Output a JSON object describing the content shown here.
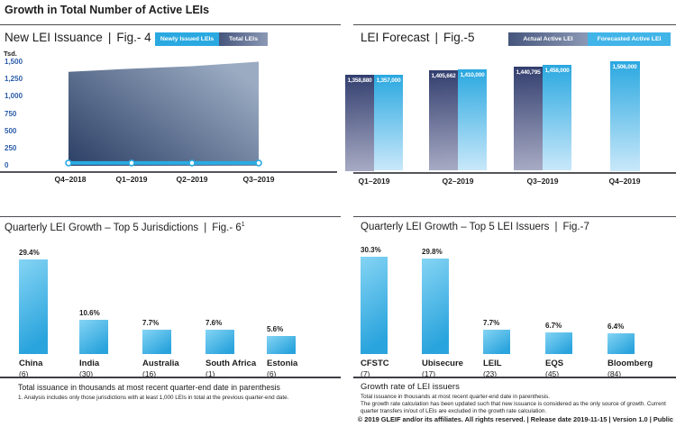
{
  "page_title": "Growth in Total Number of Active LEIs",
  "footer_line": "© 2019 GLEIF and/or its affiliates. All rights reserved. | Release date 2019-11-15 | Version 1.0 | Public",
  "colors": {
    "light_blue": "#29a9e1",
    "pale_blue": "#c9e8fa",
    "navy": "#323e6e",
    "steel": "#a8abc4",
    "tick_blue": "#2b5ca9"
  },
  "chart_data": [
    {
      "id": "fig4",
      "type": "area",
      "title": "New LEI Issuance",
      "fig_label": "Fig.- 4",
      "unit_label": "Tsd.",
      "legend": [
        "Newly Issued LEIs",
        "Total LEIs"
      ],
      "legend_position": "top-right",
      "x": [
        "Q4–2018",
        "Q1–2019",
        "Q2–2019",
        "Q3–2019"
      ],
      "series": [
        {
          "name": "Total LEIs",
          "type": "area",
          "values": [
            1359,
            1406,
            1441,
            1506
          ]
        },
        {
          "name": "Newly Issued LEIs",
          "type": "line",
          "values": [
            40,
            40,
            40,
            40
          ]
        }
      ],
      "ylabel": "Tsd.",
      "ylim": [
        0,
        1500
      ],
      "grid": false,
      "yticks": [
        1500,
        1250,
        1000,
        750,
        500,
        250,
        0
      ],
      "ytick_labels": [
        "1,500",
        "1,250",
        "1,000",
        "750",
        "500",
        "250",
        "0"
      ]
    },
    {
      "id": "fig5",
      "type": "bar",
      "title": "LEI Forecast",
      "fig_label": "Fig.-5",
      "legend": [
        "Actual Active LEI",
        "Forecasted Active LEI"
      ],
      "legend_position": "top-right",
      "x": [
        "Q1–2019",
        "Q2–2019",
        "Q3–2019",
        "Q4–2019"
      ],
      "series": [
        {
          "name": "Actual Active LEI",
          "values": [
            1358880,
            1405662,
            1440795,
            null
          ],
          "labels": [
            "1,358,880",
            "1,405,662",
            "1,440,795",
            null
          ]
        },
        {
          "name": "Forecasted Active LEI",
          "values": [
            1357000,
            1410000,
            1458000,
            1506000
          ],
          "labels": [
            "1,357,000",
            "1,410,000",
            "1,458,000",
            "1,506,000"
          ]
        }
      ]
    },
    {
      "id": "fig6",
      "type": "bar",
      "title": "Quarterly LEI Growth – Top 5 Jurisdictions",
      "fig_label": "Fig.- 6",
      "fig_superscript": "1",
      "categories": [
        "China",
        "India",
        "Australia",
        "South Africa",
        "Estonia"
      ],
      "category_sublabels": [
        "(6)",
        "(30)",
        "(16)",
        "(1)",
        "(6)"
      ],
      "values": [
        29.4,
        10.6,
        7.7,
        7.6,
        5.6
      ],
      "value_labels": [
        "29.4%",
        "10.6%",
        "7.7%",
        "7.6%",
        "5.6%"
      ],
      "note": "Total issuance in thousands at most recent quarter-end date in parenthesis",
      "footnote": "1. Analysis includes only those jurisdictions with at least 1,000 LEIs in total at the previous quarter-end date."
    },
    {
      "id": "fig7",
      "type": "bar",
      "title": "Quarterly LEI Growth – Top 5 LEI Issuers",
      "fig_label": "Fig.-7",
      "categories": [
        "CFSTC",
        "Ubisecure",
        "LEIL",
        "EQS",
        "Bloomberg"
      ],
      "category_sublabels": [
        "(7)",
        "(17)",
        "(23)",
        "(45)",
        "(84)"
      ],
      "values": [
        30.3,
        29.8,
        7.7,
        6.7,
        6.4
      ],
      "value_labels": [
        "30.3%",
        "29.8%",
        "7.7%",
        "6.7%",
        "6.4%"
      ],
      "note_title": "Growth rate of LEI issuers",
      "notes": [
        "Total issuance in thousands at most recent quarter-end date in parenthesis.",
        "The growth rate calculation has been updated such that new issuance is considered as the only source of growth. Current quarter transfers in/out of LEIs are excluded in the growth rate calculation."
      ]
    }
  ]
}
